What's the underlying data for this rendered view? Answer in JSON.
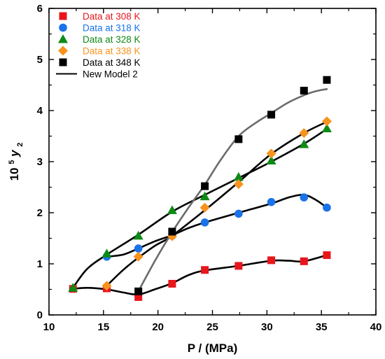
{
  "colors": {
    "s308": "#e8161b",
    "s318": "#1a73e8",
    "s328": "#0e8a16",
    "s338": "#f7931e",
    "s348": "#000000",
    "model_black": "#000000",
    "model_gray": "#6b6b6b"
  },
  "chart_data": {
    "type": "scatter",
    "title": "",
    "xlabel": "P / (MPa)",
    "ylabel": {
      "prefix": "10",
      "sup": "5",
      "var": "y",
      "sub": "2"
    },
    "xlim": [
      10,
      40
    ],
    "ylim": [
      0,
      6
    ],
    "xticks": [
      10,
      15,
      20,
      25,
      30,
      35,
      40
    ],
    "yticks": [
      0,
      1,
      2,
      3,
      4,
      5,
      6
    ],
    "grid": false,
    "legend_position": "top-left",
    "series": [
      {
        "name": "Data at 308 K",
        "marker": "square",
        "color_key": "s308",
        "x": [
          12.2,
          15.3,
          18.2,
          21.3,
          24.3,
          27.4,
          30.4,
          33.4,
          35.5
        ],
        "y": [
          0.51,
          0.52,
          0.35,
          0.61,
          0.88,
          0.96,
          1.07,
          1.05,
          1.17
        ]
      },
      {
        "name": "Data at 318 K",
        "marker": "circle",
        "color_key": "s318",
        "x": [
          15.3,
          18.2,
          21.3,
          24.3,
          27.4,
          30.4,
          33.4,
          35.5
        ],
        "y": [
          1.14,
          1.3,
          1.55,
          1.81,
          1.98,
          2.21,
          2.3,
          2.1
        ]
      },
      {
        "name": "Data at 328 K",
        "marker": "triangle",
        "color_key": "s328",
        "x": [
          12.2,
          15.3,
          18.2,
          21.3,
          24.3,
          27.4,
          30.4,
          33.4,
          35.5
        ],
        "y": [
          0.53,
          1.2,
          1.55,
          2.05,
          2.32,
          2.7,
          3.02,
          3.34,
          3.65
        ]
      },
      {
        "name": "Data at 338 K",
        "marker": "diamond",
        "color_key": "s338",
        "x": [
          15.3,
          18.2,
          21.3,
          24.3,
          27.4,
          30.4,
          33.4,
          35.5
        ],
        "y": [
          0.57,
          1.14,
          1.54,
          2.1,
          2.56,
          3.16,
          3.56,
          3.79
        ]
      },
      {
        "name": "Data at 348 K",
        "marker": "square",
        "color_key": "s348",
        "x": [
          18.2,
          21.3,
          24.3,
          27.4,
          30.4,
          33.4,
          35.5
        ],
        "y": [
          0.46,
          1.63,
          2.52,
          3.44,
          3.92,
          4.39,
          4.6
        ]
      }
    ],
    "model": {
      "name": "New Model 2",
      "curves": [
        {
          "color_key": "model_black",
          "x": [
            12.2,
            13.5,
            15.3,
            16.8,
            18.2,
            19.7,
            21.3,
            22.8,
            24.3,
            27.4,
            30.4,
            32.0,
            33.4,
            35.5
          ],
          "y": [
            0.51,
            0.53,
            0.5,
            0.44,
            0.4,
            0.5,
            0.62,
            0.78,
            0.87,
            0.96,
            1.06,
            1.06,
            1.05,
            1.17
          ]
        },
        {
          "color_key": "model_black",
          "x": [
            15.3,
            16.8,
            18.2,
            19.7,
            21.3,
            22.8,
            24.3,
            27.4,
            30.4,
            32.0,
            33.4,
            34.5,
            35.5
          ],
          "y": [
            1.14,
            1.18,
            1.3,
            1.44,
            1.56,
            1.7,
            1.81,
            2.0,
            2.18,
            2.3,
            2.35,
            2.25,
            2.1
          ]
        },
        {
          "color_key": "model_black",
          "x": [
            12.2,
            13.5,
            15.3,
            18.2,
            21.3,
            24.3,
            27.4,
            30.4,
            33.4,
            35.5
          ],
          "y": [
            0.53,
            0.9,
            1.18,
            1.57,
            2.02,
            2.35,
            2.68,
            3.0,
            3.35,
            3.64
          ]
        },
        {
          "color_key": "model_black",
          "x": [
            15.3,
            16.8,
            18.2,
            19.7,
            21.3,
            24.3,
            27.4,
            30.4,
            33.4,
            35.5
          ],
          "y": [
            0.57,
            0.88,
            1.12,
            1.35,
            1.55,
            2.05,
            2.6,
            3.15,
            3.56,
            3.78
          ]
        },
        {
          "color_key": "model_gray",
          "x": [
            18.2,
            19.7,
            21.3,
            22.8,
            24.3,
            25.8,
            27.4,
            28.9,
            30.4,
            31.9,
            33.4,
            34.5,
            35.5
          ],
          "y": [
            0.46,
            1.05,
            1.62,
            2.1,
            2.55,
            3.05,
            3.5,
            3.75,
            3.95,
            4.15,
            4.3,
            4.38,
            4.42
          ]
        }
      ]
    }
  }
}
